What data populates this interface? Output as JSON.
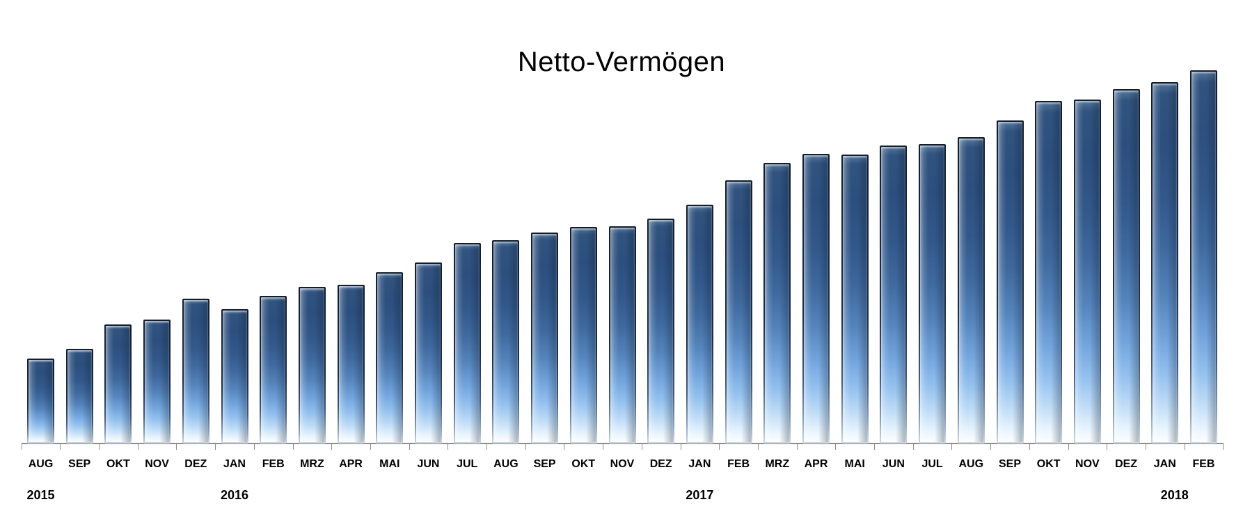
{
  "chart_data": {
    "type": "bar",
    "title": "Netto-Vermögen",
    "categories": [
      "AUG",
      "SEP",
      "OKT",
      "NOV",
      "DEZ",
      "JAN",
      "FEB",
      "MRZ",
      "APR",
      "MAI",
      "JUN",
      "JUL",
      "AUG",
      "SEP",
      "OKT",
      "NOV",
      "DEZ",
      "JAN",
      "FEB",
      "MRZ",
      "APR",
      "MAI",
      "JUN",
      "JUL",
      "AUG",
      "SEP",
      "OKT",
      "NOV",
      "DEZ",
      "JAN",
      "FEB"
    ],
    "values": [
      122,
      136,
      171,
      178,
      208,
      193,
      212,
      225,
      228,
      246,
      260,
      288,
      292,
      303,
      311,
      312,
      323,
      343,
      378,
      403,
      416,
      415,
      428,
      430,
      440,
      464,
      492,
      494,
      509,
      519,
      536
    ],
    "years": [
      {
        "label": "2015",
        "anchor_index": 0,
        "start_month_index": 0,
        "end_month_index": 4
      },
      {
        "label": "2016",
        "anchor_index": 5,
        "start_month_index": 5,
        "end_month_index": 16
      },
      {
        "label": "2017",
        "anchor_index": 17,
        "start_month_index": 17,
        "end_month_index": 28
      },
      {
        "label": "2018",
        "anchor_index": 29.25,
        "start_month_index": 29,
        "end_month_index": 30
      }
    ],
    "xlabel": "",
    "ylabel": "",
    "value_axis": "none — no value-axis labels or gridlines shown; values are bar heights in screen pixels relative to baseline",
    "ylim": [
      0,
      560
    ],
    "gridlines": false,
    "legend": "none"
  },
  "colors": {
    "background": "#FFFFFF",
    "title_text": "#000000",
    "label_text": "#000000",
    "axis_line": "#8C8C8C",
    "bar_border_dark": "#18283E",
    "bar_top": "#2C4F7E",
    "bar_mid": "#5585BC",
    "bar_light": "#93C0EE",
    "bar_bottom": "#FDFEFF"
  }
}
